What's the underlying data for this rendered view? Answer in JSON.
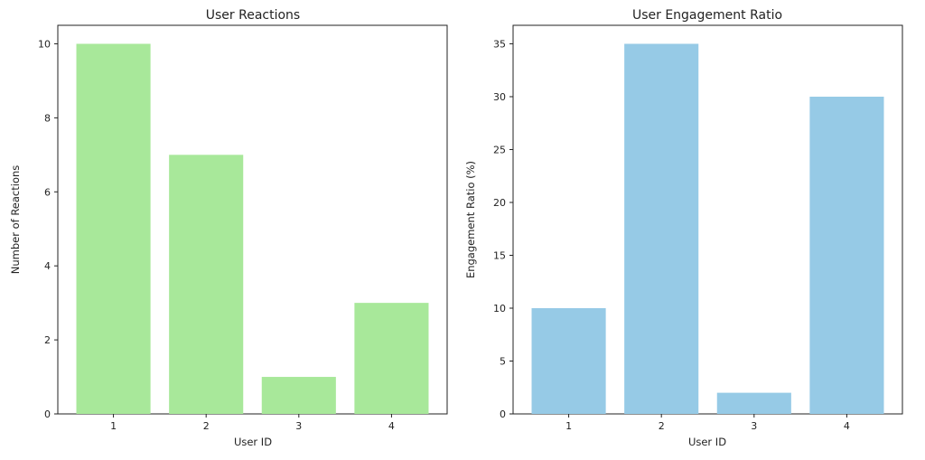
{
  "chart_data": [
    {
      "type": "bar",
      "title": "User Reactions",
      "xlabel": "User ID",
      "ylabel": "Number of Reactions",
      "categories": [
        "1",
        "2",
        "3",
        "4"
      ],
      "values": [
        10,
        7,
        1,
        3
      ],
      "ylim": [
        0,
        10.5
      ],
      "yticks": [
        0,
        2,
        4,
        6,
        8,
        10
      ],
      "color": "#a8e89a",
      "grid": false
    },
    {
      "type": "bar",
      "title": "User Engagement Ratio",
      "xlabel": "User ID",
      "ylabel": "Engagement Ratio (%)",
      "categories": [
        "1",
        "2",
        "3",
        "4"
      ],
      "values": [
        10,
        35,
        2,
        30
      ],
      "ylim": [
        0,
        36.75
      ],
      "yticks": [
        0,
        5,
        10,
        15,
        20,
        25,
        30,
        35
      ],
      "color": "#96cae6",
      "grid": false
    }
  ]
}
